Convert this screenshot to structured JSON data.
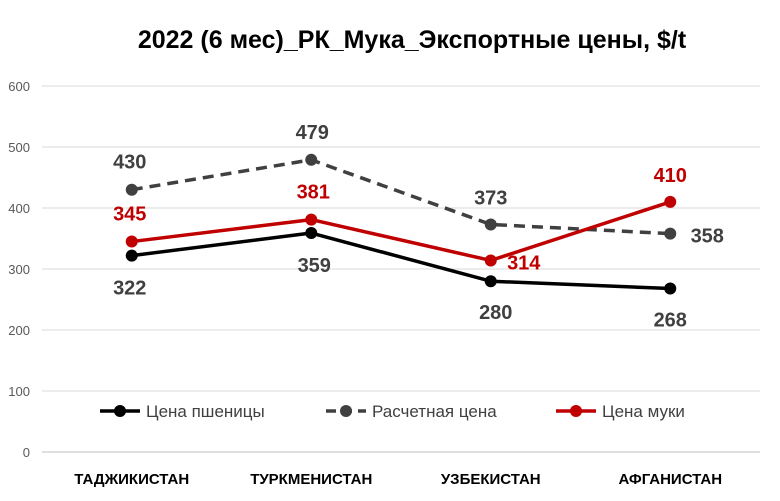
{
  "chart_data": {
    "type": "line",
    "title": "2022 (6 мес)_РК_Мука_Экспортные цены, $/t",
    "categories": [
      "ТАДЖИКИСТАН",
      "ТУРКМЕНИСТАН",
      "УЗБЕКИСТАН",
      "АФГАНИСТАН"
    ],
    "ylim": [
      0,
      600
    ],
    "yticks": [
      "0",
      "100",
      "200",
      "300",
      "400",
      "500",
      "600"
    ],
    "grid": true,
    "legend_position": "bottom-inside",
    "series": [
      {
        "name": "Цена пшеницы",
        "values": [
          322,
          359,
          280,
          268
        ],
        "labels": [
          "322",
          "359",
          "280",
          "268"
        ],
        "color": "#000000",
        "dashed": false
      },
      {
        "name": "Расчетная цена",
        "values": [
          430,
          479,
          373,
          358
        ],
        "labels": [
          "430",
          "479",
          "373",
          "358"
        ],
        "color": "#404040",
        "dashed": true
      },
      {
        "name": "Цена муки",
        "values": [
          345,
          381,
          314,
          410
        ],
        "labels": [
          "345",
          "381",
          "314",
          "410"
        ],
        "color": "#c00000",
        "dashed": false
      }
    ]
  }
}
